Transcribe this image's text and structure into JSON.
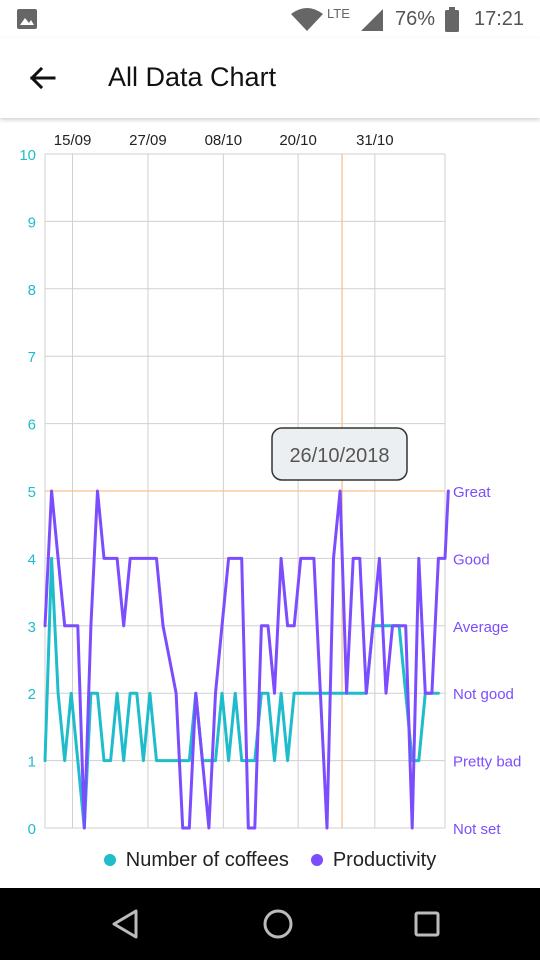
{
  "status_bar": {
    "network_label": "LTE",
    "battery_percent": "76%",
    "time": "17:21",
    "icons": [
      "gallery-icon",
      "wifi-icon",
      "signal-icon",
      "battery-icon"
    ]
  },
  "app_bar": {
    "title": "All Data Chart",
    "back_icon": "arrow-left-icon"
  },
  "tooltip": {
    "date": "26/10/2018"
  },
  "legend": [
    {
      "label": "Number of coffees",
      "color": "#1fbccc"
    },
    {
      "label": "Productivity",
      "color": "#7c4dff"
    }
  ],
  "nav_bar": {
    "icons": [
      "back-triangle-icon",
      "home-circle-icon",
      "recents-square-icon"
    ]
  },
  "chart_data": {
    "type": "line",
    "x_tick_labels": [
      "15/09",
      "27/09",
      "08/10",
      "20/10",
      "31/10"
    ],
    "left_axis": {
      "ticks": [
        "0",
        "1",
        "2",
        "3",
        "4",
        "5",
        "6",
        "7",
        "8",
        "9",
        "10"
      ],
      "ylim": [
        0,
        10
      ],
      "color": "#1fbccc"
    },
    "right_axis": {
      "ticks": [
        "Not set",
        "Pretty bad",
        "Not good",
        "Average",
        "Good",
        "Great"
      ],
      "ylim": [
        0,
        10
      ],
      "color": "#7c4dff"
    },
    "x_range": [
      0,
      61
    ],
    "x_tick_positions": [
      4.2,
      15.7,
      27.2,
      38.6,
      50.3
    ],
    "highlight": {
      "x": 45.3,
      "y": 5,
      "color": "#f6c18f"
    },
    "grid": true,
    "legend_position": "bottom-center",
    "series": [
      {
        "name": "Number of coffees",
        "color": "#1fbccc",
        "points": [
          [
            0,
            1
          ],
          [
            1,
            4
          ],
          [
            2,
            2
          ],
          [
            3,
            1
          ],
          [
            4,
            2
          ],
          [
            5,
            1
          ],
          [
            6,
            0
          ],
          [
            7,
            2
          ],
          [
            8,
            2
          ],
          [
            9,
            1
          ],
          [
            10,
            1
          ],
          [
            11,
            2
          ],
          [
            12,
            1
          ],
          [
            13,
            2
          ],
          [
            14,
            2
          ],
          [
            15,
            1
          ],
          [
            16,
            2
          ],
          [
            17,
            1
          ],
          [
            18,
            1
          ],
          [
            19,
            1
          ],
          [
            20,
            1
          ],
          [
            21,
            1
          ],
          [
            22,
            1
          ],
          [
            23,
            2
          ],
          [
            24,
            1
          ],
          [
            25,
            1
          ],
          [
            26,
            1
          ],
          [
            27,
            2
          ],
          [
            28,
            1
          ],
          [
            29,
            2
          ],
          [
            30,
            1
          ],
          [
            31,
            1
          ],
          [
            32,
            1
          ],
          [
            33,
            2
          ],
          [
            34,
            2
          ],
          [
            35,
            1
          ],
          [
            36,
            2
          ],
          [
            37,
            1
          ],
          [
            38,
            2
          ],
          [
            39,
            2
          ],
          [
            40,
            2
          ],
          [
            41,
            2
          ],
          [
            42,
            2
          ],
          [
            43,
            2
          ],
          [
            44,
            2
          ],
          [
            45,
            2
          ],
          [
            46,
            2
          ],
          [
            47,
            2
          ],
          [
            48,
            2
          ],
          [
            49,
            2
          ],
          [
            50,
            3
          ],
          [
            51,
            3
          ],
          [
            52,
            3
          ],
          [
            53,
            3
          ],
          [
            54,
            3
          ],
          [
            55,
            2
          ],
          [
            56,
            1
          ],
          [
            57,
            1
          ],
          [
            58,
            2
          ],
          [
            59,
            2
          ],
          [
            60,
            2
          ]
        ]
      },
      {
        "name": "Productivity",
        "color": "#7c4dff",
        "points": [
          [
            0,
            3
          ],
          [
            1,
            5
          ],
          [
            2,
            4
          ],
          [
            3,
            3
          ],
          [
            4,
            3
          ],
          [
            5,
            3
          ],
          [
            6,
            0
          ],
          [
            7,
            3
          ],
          [
            8,
            5
          ],
          [
            9,
            4
          ],
          [
            10,
            4
          ],
          [
            11,
            4
          ],
          [
            12,
            3
          ],
          [
            13,
            4
          ],
          [
            14,
            4
          ],
          [
            15,
            4
          ],
          [
            16,
            4
          ],
          [
            17,
            4
          ],
          [
            18,
            3
          ],
          [
            19,
            2.5
          ],
          [
            20,
            2
          ],
          [
            21,
            0
          ],
          [
            22,
            0
          ],
          [
            23,
            2
          ],
          [
            24,
            1
          ],
          [
            25,
            0
          ],
          [
            26,
            2
          ],
          [
            27,
            3
          ],
          [
            28,
            4
          ],
          [
            29,
            4
          ],
          [
            30,
            4
          ],
          [
            31,
            0
          ],
          [
            32,
            0
          ],
          [
            33,
            3
          ],
          [
            34,
            3
          ],
          [
            35,
            2
          ],
          [
            36,
            4
          ],
          [
            37,
            3
          ],
          [
            38,
            3
          ],
          [
            39,
            4
          ],
          [
            40,
            4
          ],
          [
            41,
            4
          ],
          [
            42,
            2
          ],
          [
            43,
            0
          ],
          [
            44,
            4
          ],
          [
            45,
            5
          ],
          [
            46,
            2
          ],
          [
            47,
            4
          ],
          [
            48,
            4
          ],
          [
            49,
            2
          ],
          [
            50,
            3
          ],
          [
            51,
            4
          ],
          [
            52,
            2
          ],
          [
            53,
            3
          ],
          [
            54,
            3
          ],
          [
            55,
            3
          ],
          [
            56,
            0
          ],
          [
            57,
            4
          ],
          [
            58,
            2
          ],
          [
            59,
            2
          ],
          [
            60,
            4
          ],
          [
            61,
            4
          ],
          [
            61.5,
            5
          ]
        ]
      }
    ]
  }
}
